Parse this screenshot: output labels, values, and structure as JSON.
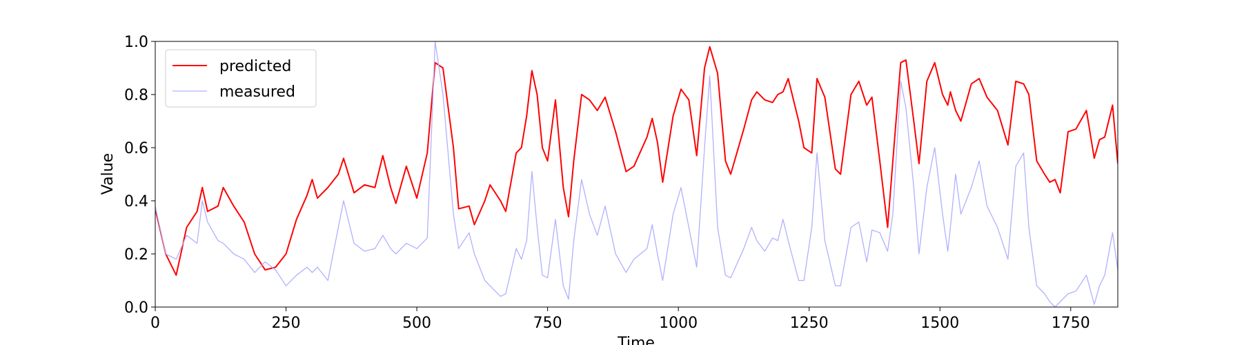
{
  "chart_data": {
    "type": "line",
    "x_label": "Time",
    "y_label": "Value",
    "xlim": [
      0,
      1840
    ],
    "ylim": [
      0,
      1
    ],
    "xticks": [
      0,
      250,
      500,
      750,
      1000,
      1250,
      1500,
      1750
    ],
    "yticks": [
      {
        "value": 0,
        "label": "0.0"
      },
      0.2,
      0.4,
      0.6,
      0.8,
      {
        "value": 1,
        "label": "1.0"
      }
    ],
    "legend": "upper left",
    "x": [
      0,
      20,
      40,
      60,
      80,
      90,
      100,
      120,
      130,
      150,
      170,
      190,
      210,
      230,
      250,
      270,
      290,
      300,
      310,
      330,
      350,
      360,
      380,
      400,
      420,
      435,
      450,
      460,
      480,
      500,
      520,
      535,
      550,
      570,
      580,
      600,
      610,
      630,
      640,
      660,
      670,
      690,
      700,
      710,
      720,
      730,
      740,
      750,
      765,
      780,
      790,
      800,
      815,
      830,
      845,
      860,
      880,
      900,
      915,
      940,
      950,
      960,
      970,
      990,
      1005,
      1020,
      1035,
      1050,
      1060,
      1075,
      1090,
      1100,
      1125,
      1140,
      1150,
      1165,
      1180,
      1190,
      1200,
      1210,
      1230,
      1240,
      1255,
      1265,
      1280,
      1300,
      1310,
      1330,
      1345,
      1360,
      1370,
      1385,
      1400,
      1410,
      1425,
      1435,
      1450,
      1460,
      1475,
      1490,
      1505,
      1515,
      1520,
      1530,
      1540,
      1560,
      1575,
      1590,
      1610,
      1630,
      1645,
      1660,
      1670,
      1685,
      1700,
      1710,
      1720,
      1730,
      1745,
      1760,
      1780,
      1795,
      1805,
      1815,
      1830,
      1840
    ],
    "series": [
      {
        "name": "predicted",
        "color": "#ff0000",
        "width": 2,
        "values": [
          0.37,
          0.2,
          0.12,
          0.3,
          0.36,
          0.45,
          0.36,
          0.38,
          0.45,
          0.38,
          0.32,
          0.2,
          0.14,
          0.15,
          0.2,
          0.33,
          0.42,
          0.48,
          0.41,
          0.45,
          0.5,
          0.56,
          0.43,
          0.46,
          0.45,
          0.57,
          0.45,
          0.39,
          0.53,
          0.41,
          0.58,
          0.92,
          0.9,
          0.6,
          0.37,
          0.38,
          0.31,
          0.4,
          0.46,
          0.4,
          0.36,
          0.58,
          0.6,
          0.72,
          0.89,
          0.8,
          0.6,
          0.55,
          0.78,
          0.45,
          0.34,
          0.55,
          0.8,
          0.78,
          0.74,
          0.79,
          0.66,
          0.51,
          0.53,
          0.64,
          0.71,
          0.62,
          0.47,
          0.72,
          0.82,
          0.78,
          0.57,
          0.9,
          0.98,
          0.88,
          0.55,
          0.5,
          0.67,
          0.78,
          0.81,
          0.78,
          0.77,
          0.8,
          0.81,
          0.86,
          0.7,
          0.6,
          0.58,
          0.86,
          0.79,
          0.52,
          0.5,
          0.8,
          0.85,
          0.76,
          0.79,
          0.55,
          0.3,
          0.55,
          0.92,
          0.93,
          0.7,
          0.54,
          0.85,
          0.92,
          0.8,
          0.76,
          0.81,
          0.74,
          0.7,
          0.84,
          0.86,
          0.79,
          0.74,
          0.61,
          0.85,
          0.84,
          0.8,
          0.55,
          0.5,
          0.47,
          0.48,
          0.43,
          0.66,
          0.67,
          0.74,
          0.56,
          0.63,
          0.64,
          0.76,
          0.54
        ]
      },
      {
        "name": "measured",
        "color": "#b0b0ff",
        "width": 1.3,
        "values": [
          0.38,
          0.2,
          0.18,
          0.27,
          0.24,
          0.4,
          0.32,
          0.25,
          0.24,
          0.2,
          0.18,
          0.13,
          0.17,
          0.14,
          0.08,
          0.12,
          0.15,
          0.13,
          0.15,
          0.1,
          0.3,
          0.4,
          0.24,
          0.21,
          0.22,
          0.27,
          0.22,
          0.2,
          0.24,
          0.22,
          0.26,
          1.0,
          0.8,
          0.35,
          0.22,
          0.28,
          0.2,
          0.1,
          0.08,
          0.04,
          0.05,
          0.22,
          0.18,
          0.25,
          0.51,
          0.3,
          0.12,
          0.11,
          0.33,
          0.08,
          0.03,
          0.25,
          0.48,
          0.35,
          0.27,
          0.38,
          0.2,
          0.13,
          0.18,
          0.22,
          0.31,
          0.2,
          0.1,
          0.35,
          0.45,
          0.3,
          0.15,
          0.6,
          0.87,
          0.3,
          0.12,
          0.11,
          0.22,
          0.3,
          0.25,
          0.21,
          0.26,
          0.25,
          0.33,
          0.25,
          0.1,
          0.1,
          0.3,
          0.58,
          0.25,
          0.08,
          0.08,
          0.3,
          0.32,
          0.17,
          0.29,
          0.28,
          0.21,
          0.35,
          0.85,
          0.75,
          0.45,
          0.2,
          0.45,
          0.6,
          0.35,
          0.21,
          0.3,
          0.5,
          0.35,
          0.45,
          0.55,
          0.38,
          0.3,
          0.18,
          0.53,
          0.58,
          0.3,
          0.08,
          0.05,
          0.02,
          0.0,
          0.02,
          0.05,
          0.06,
          0.12,
          0.01,
          0.08,
          0.12,
          0.28,
          0.14
        ]
      }
    ]
  }
}
